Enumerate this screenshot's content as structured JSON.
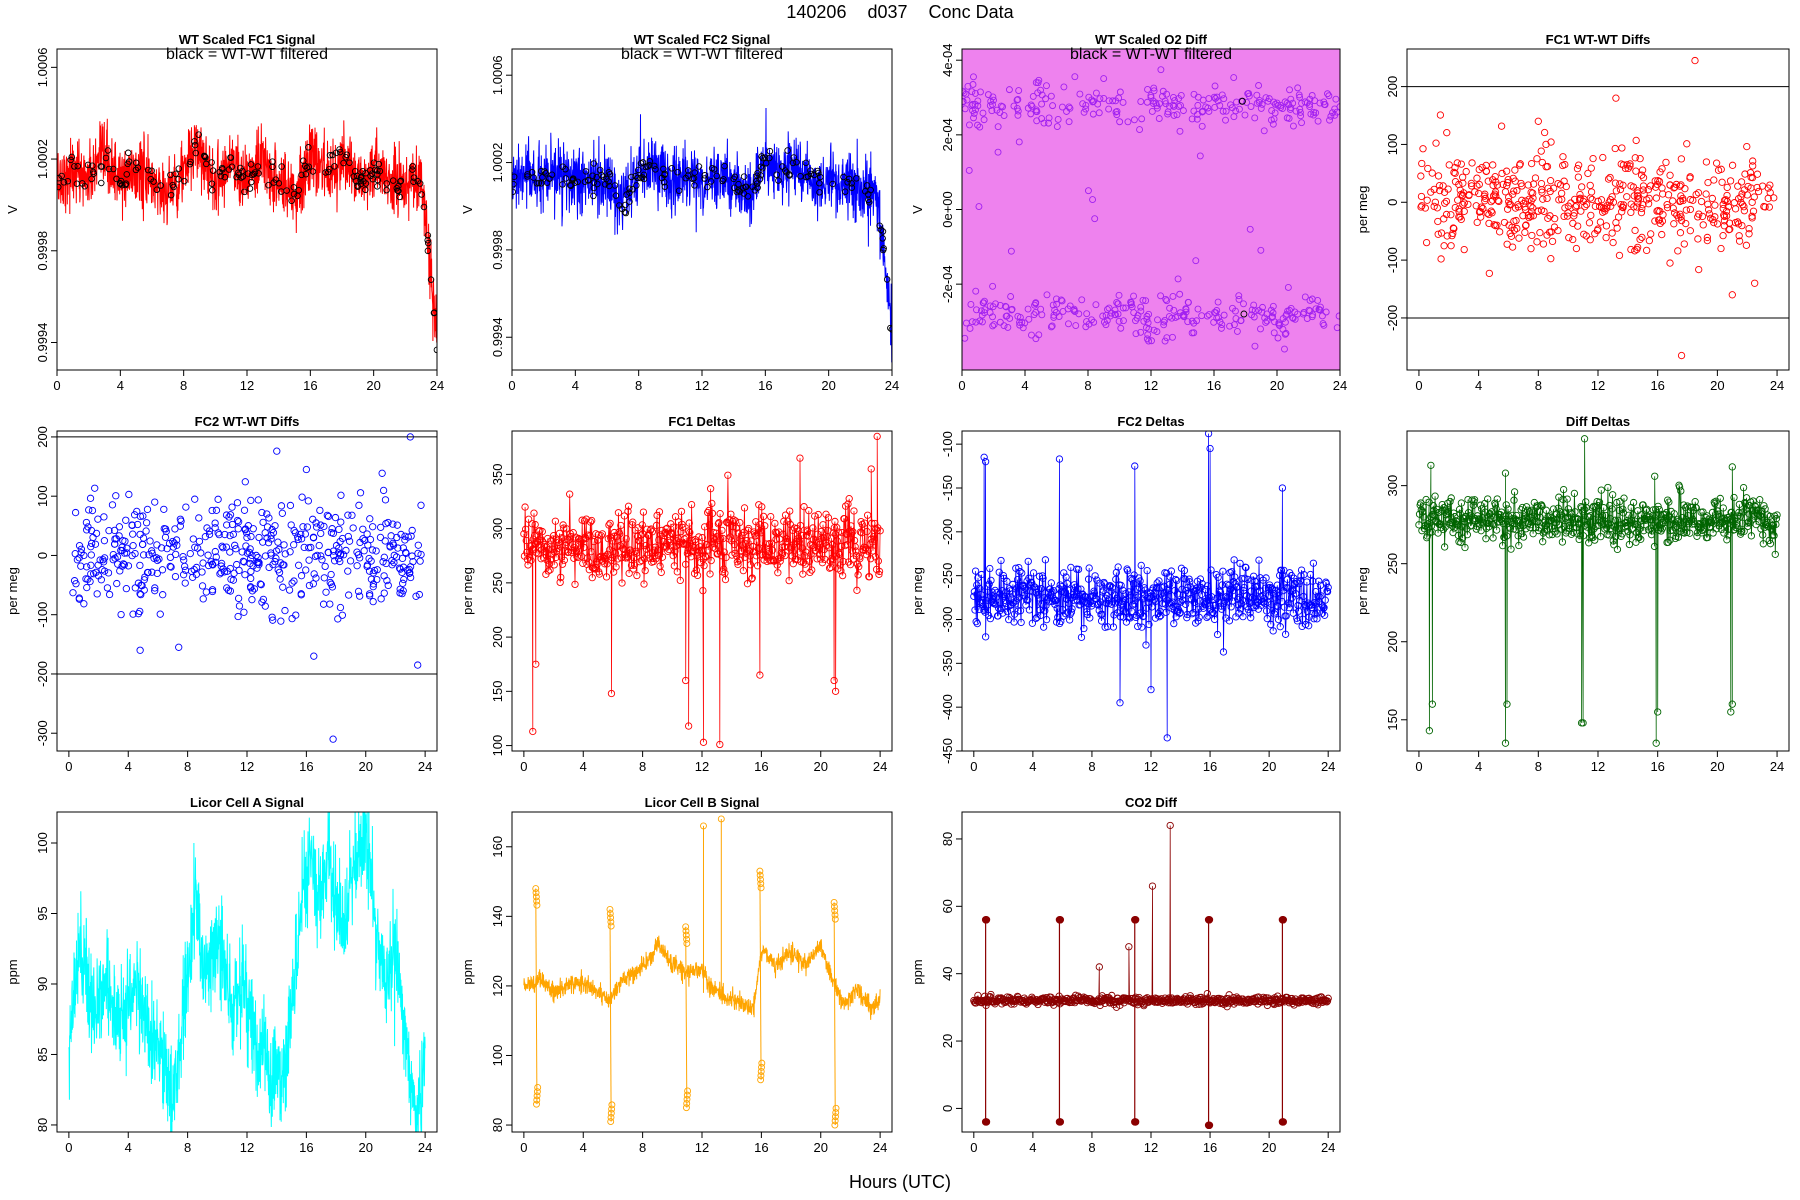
{
  "figure": {
    "title_date": "140206",
    "title_code": "d037",
    "title_label": "Conc Data",
    "x_axis_title": "Hours (UTC)"
  },
  "colors": {
    "red": "#ff0000",
    "blue": "#0000ff",
    "violet": "#a020f0",
    "violet_fill": "#ee82ee",
    "green": "#006400",
    "cyan": "#00ffff",
    "orange": "#ffa500",
    "darkred": "#8b0000",
    "black": "#000000"
  },
  "chart_data": [
    {
      "id": "fc1-signal",
      "type": "line",
      "title": "WT Scaled FC1 Signal",
      "annotation": "black = WT-WT filtered",
      "ylabel": "V",
      "xlabel": "",
      "xlim": [
        0,
        24
      ],
      "ylim": [
        0.99928,
        1.00068
      ],
      "xticks": [
        0,
        4,
        8,
        12,
        16,
        20,
        24
      ],
      "yticks": [
        0.9994,
        0.9998,
        1.0002,
        1.0006
      ],
      "ytick_labels": [
        "0.9994",
        "0.9998",
        "1.0002",
        "1.0006"
      ],
      "color": "red",
      "point_color": "black",
      "series": [
        {
          "name": "signal",
          "x": [
            0,
            1,
            2,
            3,
            4,
            5,
            6,
            7,
            8,
            9,
            10,
            11,
            12,
            13,
            14,
            15,
            16,
            17,
            18,
            19,
            20,
            21,
            22,
            23,
            23.5,
            24
          ],
          "values": [
            1.0001,
            1.00015,
            1.00012,
            1.0002,
            1.0001,
            1.00015,
            1.0001,
            1.00005,
            1.00015,
            1.00025,
            1.0001,
            1.0002,
            1.0001,
            1.00018,
            1.0001,
            1.00005,
            1.0002,
            1.00015,
            1.0002,
            1.0001,
            1.00015,
            1.0001,
            1.0001,
            1.0001,
            0.9998,
            0.9994
          ],
          "spread": 0.00016
        }
      ]
    },
    {
      "id": "fc2-signal",
      "type": "line",
      "title": "WT Scaled FC2 Signal",
      "annotation": "black = WT-WT filtered",
      "ylabel": "V",
      "xlabel": "",
      "xlim": [
        0,
        24
      ],
      "ylim": [
        0.99925,
        1.00072
      ],
      "xticks": [
        0,
        4,
        8,
        12,
        16,
        20,
        24
      ],
      "yticks": [
        0.9994,
        0.9998,
        1.0002,
        1.0006
      ],
      "ytick_labels": [
        "0.9994",
        "0.9998",
        "1.0002",
        "1.0006"
      ],
      "color": "blue",
      "point_color": "black",
      "series": [
        {
          "name": "signal",
          "x": [
            0,
            1,
            2,
            3,
            4,
            5,
            6,
            7,
            8,
            9,
            10,
            11,
            12,
            13,
            14,
            15,
            16,
            17,
            18,
            19,
            20,
            21,
            22,
            23,
            23.5,
            24
          ],
          "values": [
            1.0001,
            1.00015,
            1.0001,
            1.00015,
            1.0001,
            1.00012,
            1.0001,
            1.0,
            1.00015,
            1.0002,
            1.0001,
            1.00015,
            1.0001,
            1.00015,
            1.0001,
            1.00005,
            1.0002,
            1.00015,
            1.0002,
            1.0001,
            1.0001,
            1.0001,
            1.00008,
            1.00005,
            0.9998,
            0.9994
          ],
          "spread": 0.00016
        }
      ]
    },
    {
      "id": "o2-diff",
      "type": "line",
      "title": "WT Scaled O2 Diff",
      "annotation": "black = WT-WT filtered",
      "ylabel": "V",
      "xlabel": "",
      "xlim": [
        0,
        24
      ],
      "ylim": [
        -0.00043,
        0.00043
      ],
      "xticks": [
        0,
        4,
        8,
        12,
        16,
        20,
        24
      ],
      "yticks": [
        -0.0002,
        0,
        0.0002,
        0.0004
      ],
      "ytick_labels": [
        "-2e-04",
        "0e+00",
        "2e-04",
        "4e-04"
      ],
      "color": "violet",
      "fill_color": "violet_fill",
      "point_color": "black",
      "series": [
        {
          "name": "upper",
          "x": [
            0,
            2,
            4,
            6,
            8,
            10,
            12,
            14,
            16,
            18,
            20,
            22,
            24
          ],
          "values": [
            0.00029,
            0.00028,
            0.0003,
            0.00027,
            0.00029,
            0.00028,
            0.00029,
            0.00028,
            0.00029,
            0.00027,
            0.00029,
            0.00028,
            0.00028
          ]
        },
        {
          "name": "lower",
          "x": [
            0,
            2,
            4,
            6,
            8,
            10,
            12,
            14,
            16,
            18,
            20,
            22,
            24
          ],
          "values": [
            -0.00029,
            -0.00028,
            -0.0003,
            -0.00027,
            -0.00029,
            -0.00028,
            -0.0003,
            -0.00028,
            -0.00029,
            -0.00028,
            -0.0003,
            -0.00027,
            -0.0003
          ]
        }
      ]
    },
    {
      "id": "fc1-wtwt",
      "type": "scatter",
      "title": "FC1 WT-WT Diffs",
      "ylabel": "per meg",
      "xlabel": "",
      "xlim": [
        -0.8,
        24.8
      ],
      "ylim": [
        -290,
        265
      ],
      "xticks": [
        0,
        4,
        8,
        12,
        16,
        20,
        24
      ],
      "yticks": [
        -200,
        -100,
        0,
        100,
        200
      ],
      "ytick_labels": [
        "-200",
        "-100",
        "0",
        "100",
        "200"
      ],
      "hlines": [
        200,
        -200
      ],
      "color": "red",
      "mean": 0,
      "sd": 45,
      "n": 520,
      "outliers": [
        [
          18.5,
          245
        ],
        [
          13.2,
          180
        ],
        [
          8.0,
          140
        ],
        [
          21.0,
          -160
        ],
        [
          17.6,
          -265
        ],
        [
          22.5,
          -140
        ]
      ]
    },
    {
      "id": "fc2-wtwt",
      "type": "scatter",
      "title": "FC2 WT-WT Diffs",
      "ylabel": "per meg",
      "xlabel": "",
      "xlim": [
        -0.8,
        24.8
      ],
      "ylim": [
        -330,
        210
      ],
      "xticks": [
        0,
        4,
        8,
        12,
        16,
        20,
        24
      ],
      "yticks": [
        -300,
        -200,
        -100,
        0,
        100,
        200
      ],
      "ytick_labels": [
        "-300",
        "-200",
        "-100",
        "0",
        "100",
        "200"
      ],
      "hlines": [
        200,
        -200
      ],
      "color": "blue",
      "mean": 0,
      "sd": 45,
      "n": 520,
      "outliers": [
        [
          23.0,
          200
        ],
        [
          17.8,
          -310
        ],
        [
          23.5,
          -185
        ],
        [
          7.4,
          -155
        ],
        [
          4.8,
          -160
        ],
        [
          16.5,
          -170
        ],
        [
          16.0,
          145
        ]
      ]
    },
    {
      "id": "fc1-deltas",
      "type": "line",
      "title": "FC1 Deltas",
      "ylabel": "per meg",
      "xlabel": "",
      "xlim": [
        -0.8,
        24.8
      ],
      "ylim": [
        95,
        390
      ],
      "xticks": [
        0,
        4,
        8,
        12,
        16,
        20,
        24
      ],
      "yticks": [
        100,
        150,
        200,
        250,
        300,
        350
      ],
      "ytick_labels": [
        "100",
        "150",
        "200",
        "250",
        "300",
        "350"
      ],
      "color": "red",
      "mean": 285,
      "sd": 16,
      "n": 600,
      "dips": [
        [
          0.6,
          113
        ],
        [
          0.8,
          175
        ],
        [
          5.9,
          148
        ],
        [
          10.9,
          160
        ],
        [
          11.1,
          118
        ],
        [
          12.1,
          103
        ],
        [
          13.2,
          101
        ],
        [
          15.9,
          165
        ],
        [
          20.9,
          160
        ],
        [
          21.0,
          150
        ]
      ],
      "spikes": [
        [
          23.8,
          385
        ],
        [
          18.6,
          365
        ],
        [
          23.4,
          355
        ]
      ]
    },
    {
      "id": "fc2-deltas",
      "type": "line",
      "title": "FC2 Deltas",
      "ylabel": "per meg",
      "xlabel": "",
      "xlim": [
        -0.8,
        24.8
      ],
      "ylim": [
        -450,
        -85
      ],
      "xticks": [
        0,
        4,
        8,
        12,
        16,
        20,
        24
      ],
      "yticks": [
        -450,
        -400,
        -350,
        -300,
        -250,
        -200,
        -150,
        -100
      ],
      "ytick_labels": [
        "-450",
        "-400",
        "-350",
        "-300",
        "-250",
        "-200",
        "-150",
        "-100"
      ],
      "color": "blue",
      "mean": -275,
      "sd": 18,
      "n": 600,
      "dips": [
        [
          0.7,
          -115
        ],
        [
          0.8,
          -120
        ],
        [
          5.8,
          -117
        ],
        [
          10.9,
          -125
        ],
        [
          15.9,
          -88
        ],
        [
          16.0,
          -105
        ],
        [
          20.9,
          -150
        ]
      ],
      "spikes": [
        [
          13.1,
          -435
        ],
        [
          9.9,
          -395
        ],
        [
          12.0,
          -380
        ]
      ]
    },
    {
      "id": "diff-deltas",
      "type": "line",
      "title": "Diff Deltas",
      "ylabel": "per meg",
      "xlabel": "",
      "xlim": [
        -0.8,
        24.8
      ],
      "ylim": [
        130,
        335
      ],
      "xticks": [
        0,
        4,
        8,
        12,
        16,
        20,
        24
      ],
      "yticks": [
        150,
        200,
        250,
        300
      ],
      "ytick_labels": [
        "150",
        "200",
        "250",
        "300"
      ],
      "color": "green",
      "mean": 278,
      "sd": 7,
      "n": 600,
      "dips": [
        [
          0.7,
          143
        ],
        [
          0.9,
          160
        ],
        [
          5.8,
          135
        ],
        [
          5.9,
          160
        ],
        [
          10.9,
          148
        ],
        [
          11.0,
          148
        ],
        [
          15.9,
          135
        ],
        [
          16.0,
          155
        ],
        [
          20.9,
          155
        ],
        [
          21.0,
          160
        ]
      ],
      "spikes": [
        [
          11.1,
          330
        ],
        [
          21.0,
          312
        ],
        [
          0.8,
          313
        ],
        [
          5.8,
          308
        ],
        [
          15.8,
          306
        ]
      ]
    },
    {
      "id": "licor-a",
      "type": "line",
      "title": "Licor Cell A Signal",
      "ylabel": "ppm",
      "xlabel": "",
      "xlim": [
        -0.8,
        24.8
      ],
      "ylim": [
        79.5,
        102.2
      ],
      "xticks": [
        0,
        4,
        8,
        12,
        16,
        20,
        24
      ],
      "yticks": [
        80,
        85,
        90,
        95,
        100
      ],
      "ytick_labels": [
        "80",
        "85",
        "90",
        "95",
        "100"
      ],
      "color": "cyan",
      "series": [
        {
          "name": "cell A",
          "x": [
            0,
            0.8,
            1.5,
            2.5,
            3.5,
            4.5,
            5.5,
            6.5,
            7.0,
            7.7,
            8.5,
            9.2,
            10.0,
            11.0,
            11.8,
            12.5,
            13.5,
            14.5,
            15.3,
            16.2,
            16.8,
            17.5,
            18.4,
            19.0,
            20.0,
            20.6,
            21.4,
            22.0,
            22.8,
            23.4,
            24.0
          ],
          "values": [
            86,
            93,
            88,
            90,
            87,
            90,
            86,
            84,
            81,
            87,
            96,
            91,
            94,
            88,
            90,
            86,
            84,
            83,
            92,
            100,
            96,
            99,
            93,
            97,
            101,
            94,
            90,
            92,
            85,
            80,
            84
          ],
          "spread": 4
        }
      ]
    },
    {
      "id": "licor-b",
      "type": "line",
      "title": "Licor Cell B Signal",
      "ylabel": "ppm",
      "xlabel": "",
      "xlim": [
        -0.8,
        24.8
      ],
      "ylim": [
        78,
        170
      ],
      "xticks": [
        0,
        4,
        8,
        12,
        16,
        20,
        24
      ],
      "yticks": [
        80,
        100,
        120,
        140,
        160
      ],
      "ytick_labels": [
        "80",
        "100",
        "120",
        "140",
        "160"
      ],
      "color": "orange",
      "series": [
        {
          "name": "cell B",
          "x": [
            0,
            1,
            2,
            3,
            4,
            5,
            5.8,
            6.5,
            7.5,
            8.5,
            9.0,
            10.0,
            11.0,
            12.0,
            12.5,
            13.5,
            14.5,
            15.5,
            16.0,
            17.0,
            18.0,
            19.0,
            20.0,
            20.8,
            21.5,
            22.5,
            23.5,
            24.0
          ],
          "values": [
            120,
            122,
            118,
            120,
            121,
            118,
            116,
            121,
            124,
            128,
            132,
            126,
            124,
            125,
            120,
            117,
            115,
            114,
            131,
            126,
            130,
            126,
            132,
            122,
            115,
            119,
            113,
            117
          ],
          "spread": 3
        }
      ],
      "events": [
        [
          0.8,
          148,
          86
        ],
        [
          5.8,
          142,
          81
        ],
        [
          10.9,
          137,
          85
        ],
        [
          15.9,
          153,
          93
        ],
        [
          20.9,
          144,
          80
        ]
      ],
      "spikes": [
        [
          12.1,
          166
        ],
        [
          13.3,
          168
        ]
      ]
    },
    {
      "id": "co2-diff",
      "type": "line",
      "title": "CO2 Diff",
      "ylabel": "ppm",
      "xlabel": "",
      "xlim": [
        -0.8,
        24.8
      ],
      "ylim": [
        -7,
        88
      ],
      "xticks": [
        0,
        4,
        8,
        12,
        16,
        20,
        24
      ],
      "yticks": [
        0,
        20,
        40,
        60,
        80
      ],
      "ytick_labels": [
        "0",
        "20",
        "40",
        "60",
        "80"
      ],
      "color": "darkred",
      "mean": 32,
      "sd": 0.6,
      "n": 520,
      "events": [
        [
          0.8,
          56,
          -4
        ],
        [
          5.8,
          56,
          -4
        ],
        [
          10.9,
          56,
          -4
        ],
        [
          15.9,
          56,
          -5
        ],
        [
          20.9,
          56,
          -4
        ]
      ],
      "spikes": [
        [
          12.1,
          66
        ],
        [
          13.3,
          84
        ],
        [
          10.5,
          48
        ],
        [
          8.5,
          42
        ]
      ]
    }
  ]
}
